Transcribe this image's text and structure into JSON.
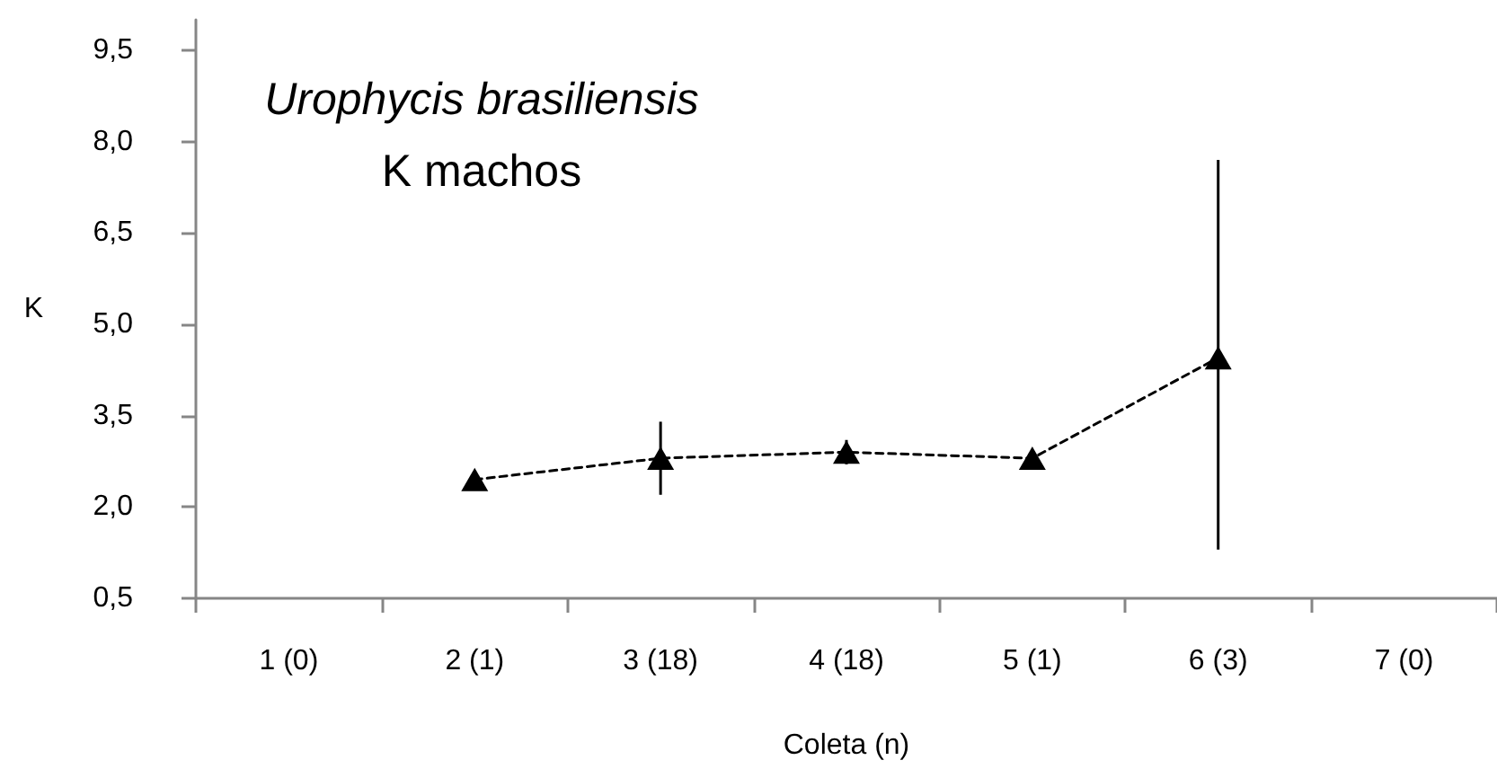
{
  "chart_data": {
    "type": "line",
    "title": "Urophycis brasiliensis",
    "subtitle": "K machos",
    "xlabel": "Coleta (n)",
    "ylabel": "K",
    "categories": [
      "1 (0)",
      "2 (1)",
      "3 (18)",
      "4 (18)",
      "5 (1)",
      "6 (3)",
      "7 (0)"
    ],
    "series": [
      {
        "color": "#000000",
        "values": [
          null,
          2.45,
          2.8,
          2.9,
          2.8,
          4.45,
          null
        ],
        "errors": [
          null,
          null,
          0.6,
          0.2,
          null,
          [
            1.3,
            7.7
          ],
          null
        ]
      }
    ],
    "ylim": [
      0.5,
      10
    ],
    "yticks": [
      {
        "value": 0.5,
        "label": "0,5"
      },
      {
        "value": 2,
        "label": "2,0"
      },
      {
        "value": 3.5,
        "label": "3,5"
      },
      {
        "value": 5,
        "label": "5,0"
      },
      {
        "value": 6.5,
        "label": "6,5"
      },
      {
        "value": 8,
        "label": "8,0"
      },
      {
        "value": 9.5,
        "label": "9,5"
      }
    ],
    "grid": false,
    "marker": "triangle",
    "line_style": "dashed"
  }
}
